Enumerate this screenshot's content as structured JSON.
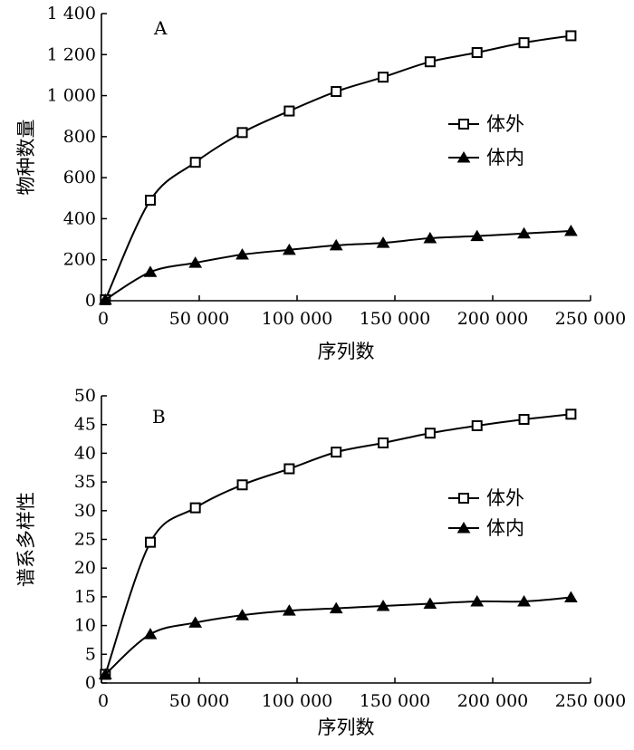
{
  "chart_data": [
    {
      "type": "line",
      "panel_label": "A",
      "xlabel": "序列数",
      "ylabel": "物种数量",
      "xlim": [
        0,
        250000
      ],
      "ylim": [
        0,
        1400
      ],
      "xticks": [
        0,
        50000,
        100000,
        150000,
        200000,
        250000
      ],
      "xtick_labels": [
        "0",
        "50 000",
        "100 000",
        "150 000",
        "200 000",
        "250 000"
      ],
      "yticks": [
        0,
        200,
        400,
        600,
        800,
        1000,
        1200,
        1400
      ],
      "ytick_labels": [
        "0",
        "200",
        "400",
        "600",
        "800",
        "1 000",
        "1 200",
        "1 400"
      ],
      "grid": false,
      "legend_position": "right",
      "series": [
        {
          "name": "体外",
          "marker": "open-square",
          "x": [
            2000,
            25000,
            48000,
            72000,
            96000,
            120000,
            144000,
            168000,
            192000,
            216000,
            240000
          ],
          "y": [
            5,
            490,
            675,
            820,
            925,
            1020,
            1090,
            1165,
            1210,
            1258,
            1292
          ]
        },
        {
          "name": "体内",
          "marker": "filled-triangle",
          "x": [
            2000,
            25000,
            48000,
            72000,
            96000,
            120000,
            144000,
            168000,
            192000,
            216000,
            240000
          ],
          "y": [
            5,
            140,
            185,
            225,
            248,
            270,
            282,
            305,
            315,
            328,
            340
          ]
        }
      ]
    },
    {
      "type": "line",
      "panel_label": "B",
      "xlabel": "序列数",
      "ylabel": "谱系多样性",
      "xlim": [
        0,
        250000
      ],
      "ylim": [
        0,
        50
      ],
      "xticks": [
        0,
        50000,
        100000,
        150000,
        200000,
        250000
      ],
      "xtick_labels": [
        "0",
        "50 000",
        "100 000",
        "150 000",
        "200 000",
        "250 000"
      ],
      "yticks": [
        0,
        5,
        10,
        15,
        20,
        25,
        30,
        35,
        40,
        45,
        50
      ],
      "ytick_labels": [
        "0",
        "5",
        "10",
        "15",
        "20",
        "25",
        "30",
        "35",
        "40",
        "45",
        "50"
      ],
      "grid": false,
      "legend_position": "right",
      "series": [
        {
          "name": "体外",
          "marker": "open-square",
          "x": [
            2000,
            25000,
            48000,
            72000,
            96000,
            120000,
            144000,
            168000,
            192000,
            216000,
            240000
          ],
          "y": [
            1.5,
            24.5,
            30.5,
            34.5,
            37.3,
            40.2,
            41.8,
            43.5,
            44.8,
            45.9,
            46.8
          ]
        },
        {
          "name": "体内",
          "marker": "filled-triangle",
          "x": [
            2000,
            25000,
            48000,
            72000,
            96000,
            120000,
            144000,
            168000,
            192000,
            216000,
            240000
          ],
          "y": [
            1.5,
            8.5,
            10.5,
            11.8,
            12.6,
            13.0,
            13.4,
            13.8,
            14.2,
            14.2,
            14.9
          ]
        }
      ]
    }
  ]
}
